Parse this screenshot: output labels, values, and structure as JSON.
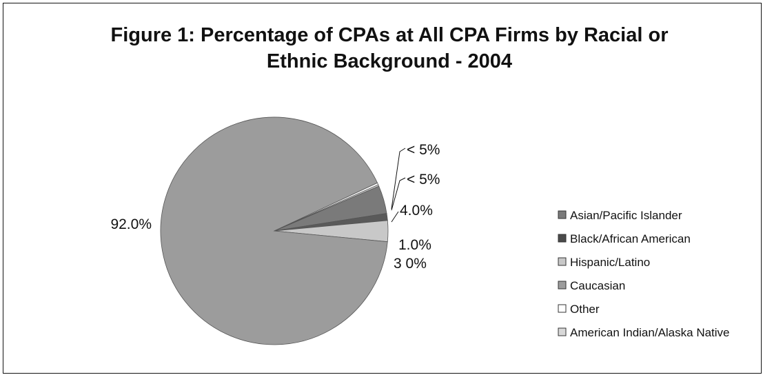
{
  "chart_data": {
    "type": "pie",
    "title": "Figure 1: Percentage of CPAs at All CPA Firms by Racial or Ethnic Background - 2004",
    "title_lines": [
      "Figure 1: Percentage of CPAs at All CPA Firms by Racial or",
      "Ethnic Background - 2004"
    ],
    "slices": [
      {
        "name": "Asian/Pacific Islander",
        "value": 4.0,
        "label": "4.0%",
        "color": "#7a7a7a"
      },
      {
        "name": "Black/African American",
        "value": 1.0,
        "label": "1.0%",
        "color": "#5a5a5a"
      },
      {
        "name": "Hispanic/Latino",
        "value": 3.0,
        "label": "3 0%",
        "color": "#c8c8c8"
      },
      {
        "name": "Caucasian",
        "value": 92.0,
        "label": "92.0%",
        "color": "#9c9c9c"
      },
      {
        "name": "Other",
        "value": 0.3,
        "label": "< 5%",
        "color": "#f4f4f4"
      },
      {
        "name": "American Indian/Alaska Native",
        "value": 0.2,
        "label": "< 5%",
        "color": "#d8d8d8"
      }
    ],
    "legend": [
      {
        "text": "Asian/Pacific Islander",
        "color": "#7a7a7a"
      },
      {
        "text": "Black/African American",
        "color": "#4a4a4a"
      },
      {
        "text": "Hispanic/Latino",
        "color": "#c8c8c8"
      },
      {
        "text": "Caucasian",
        "color": "#9c9c9c"
      },
      {
        "text": "Other",
        "color": "#ffffff"
      },
      {
        "text": "American Indian/Alaska Native",
        "color": "#d8d8d8"
      }
    ],
    "legend_position": "right"
  }
}
